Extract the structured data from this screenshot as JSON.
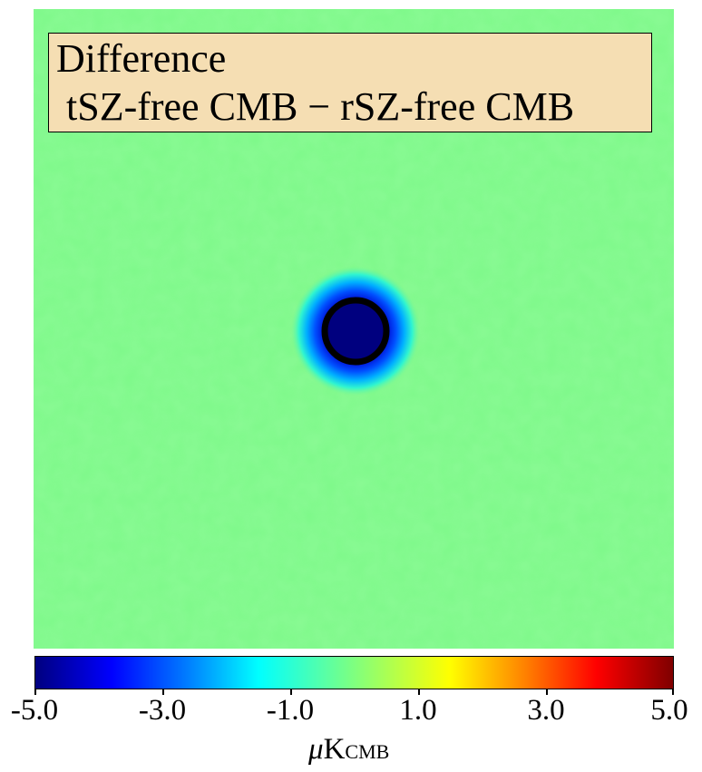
{
  "map": {
    "title_line1": "Difference",
    "title_line2": " tSZ-free CMB − rSZ-free CMB",
    "background_color": "#7ef98a",
    "spot_color": "#00007f",
    "ring_color": "#000000"
  },
  "colorbar": {
    "colormap": "jet",
    "min": -5.0,
    "max": 5.0,
    "ticks": [
      "-5.0",
      "-3.0",
      "-1.0",
      "1.0",
      "3.0",
      "5.0"
    ],
    "unit_prefix": "μ",
    "unit_main": "K",
    "unit_sub": "CMB"
  }
}
